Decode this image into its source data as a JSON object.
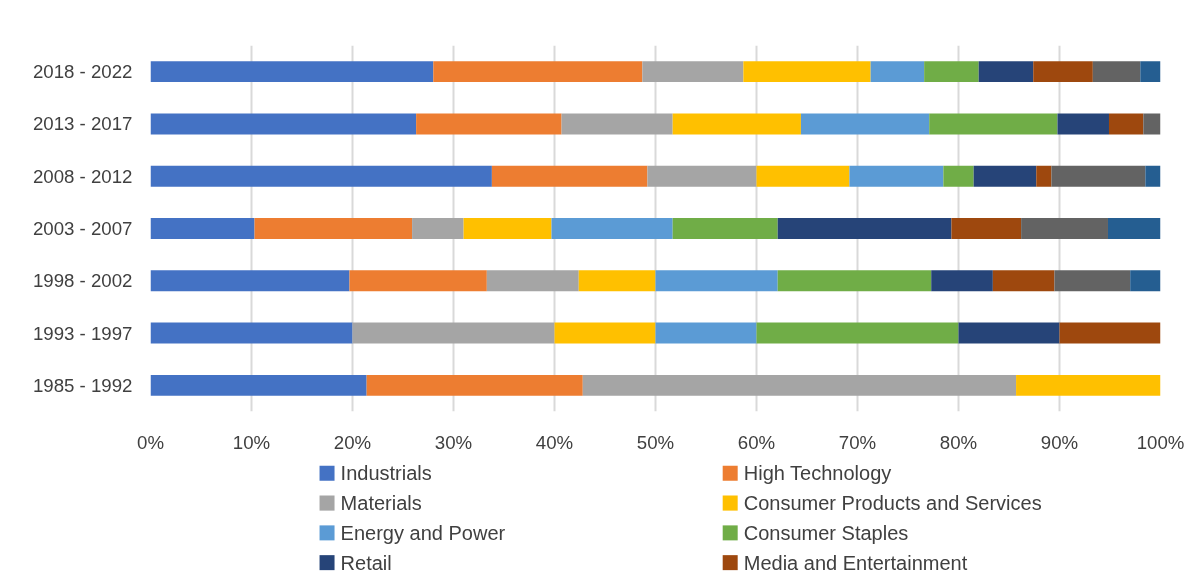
{
  "chart_data": {
    "type": "bar",
    "orientation": "horizontal",
    "stacked": true,
    "categories": [
      "2018 - 2022",
      "2013 - 2017",
      "2008 - 2012",
      "2003 - 2007",
      "1998 - 2002",
      "1993 - 1997",
      "1985 - 1992"
    ],
    "series": [
      {
        "name": "Industrials",
        "color": "#4472c4",
        "values": [
          28.0,
          26.3,
          33.8,
          10.3,
          19.7,
          20,
          21.4
        ]
      },
      {
        "name": "High Technology",
        "color": "#ed7d31",
        "values": [
          20.7,
          14.4,
          15.4,
          15.6,
          13.6,
          0,
          21.4
        ]
      },
      {
        "name": "Materials",
        "color": "#a5a5a5",
        "values": [
          10.0,
          11.0,
          10.8,
          5.1,
          9.1,
          20,
          42.9
        ]
      },
      {
        "name": "Consumer Products and Services",
        "color": "#ffc000",
        "values": [
          12.6,
          12.7,
          9.2,
          8.7,
          7.6,
          10,
          14.3
        ]
      },
      {
        "name": "Energy and Power",
        "color": "#5b9bd5",
        "values": [
          5.3,
          12.7,
          9.3,
          12.0,
          12.1,
          10,
          0
        ]
      },
      {
        "name": "Consumer Staples",
        "color": "#70ad47",
        "values": [
          5.4,
          12.7,
          3.0,
          10.4,
          15.2,
          20,
          0
        ]
      },
      {
        "name": "Retail",
        "color": "#264478",
        "values": [
          5.4,
          5.1,
          6.2,
          17.2,
          6.1,
          10,
          0
        ]
      },
      {
        "name": "Media and Entertainment",
        "color": "#9e480e",
        "values": [
          5.9,
          3.4,
          1.5,
          6.9,
          6.1,
          10,
          0
        ]
      },
      {
        "color": "#636363",
        "values": [
          4.7,
          1.7,
          9.3,
          8.6,
          7.5,
          0,
          0
        ]
      },
      {
        "color": "#255e91",
        "values": [
          2.0,
          0,
          1.5,
          5.2,
          3.0,
          0,
          0
        ]
      }
    ],
    "xlim": [
      0,
      100
    ],
    "xticks": [
      {
        "value": 0,
        "label": "0%"
      },
      {
        "value": 10,
        "label": "10%"
      },
      {
        "value": 20,
        "label": "20%"
      },
      {
        "value": 30,
        "label": "30%"
      },
      {
        "value": 40,
        "label": "40%"
      },
      {
        "value": 50,
        "label": "50%"
      },
      {
        "value": 60,
        "label": "60%"
      },
      {
        "value": 70,
        "label": "70%"
      },
      {
        "value": 80,
        "label": "80%"
      },
      {
        "value": 90,
        "label": "90%"
      },
      {
        "value": 100,
        "label": "100%"
      }
    ],
    "grid": "x",
    "legend": "bottom"
  }
}
